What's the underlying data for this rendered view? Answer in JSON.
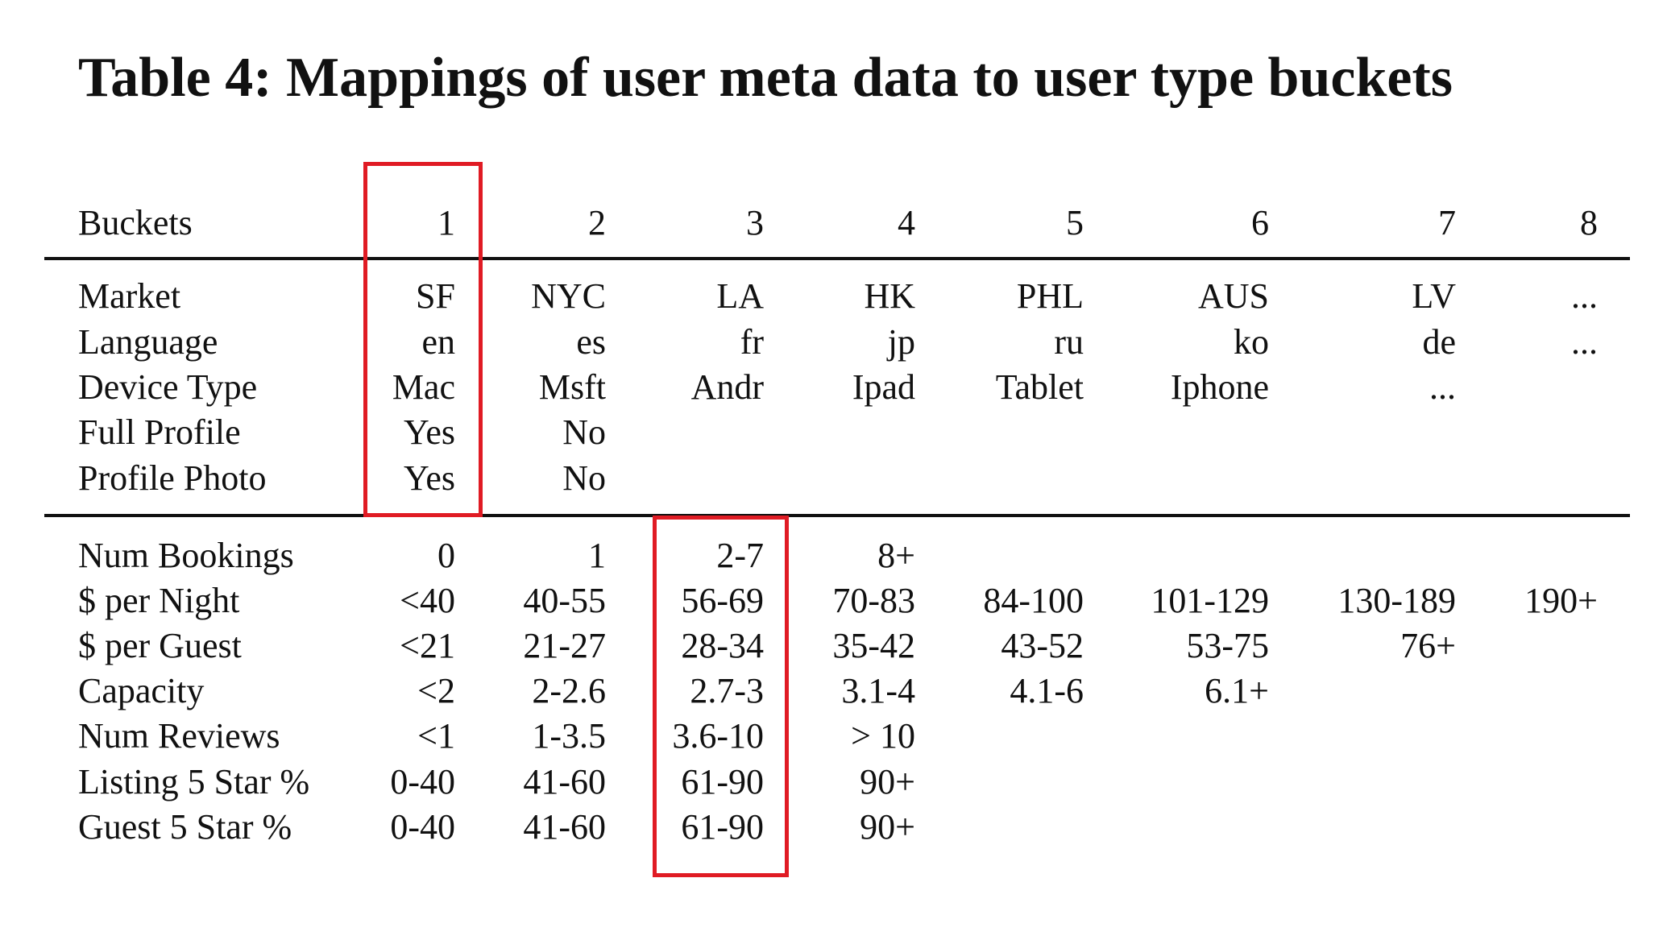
{
  "title": "Table 4: Mappings of user meta data to user type buckets",
  "header": {
    "label": "Buckets",
    "columns": [
      "1",
      "2",
      "3",
      "4",
      "5",
      "6",
      "7",
      "8"
    ]
  },
  "group1": [
    {
      "label": "Market",
      "cells": [
        "SF",
        "NYC",
        "LA",
        "HK",
        "PHL",
        "AUS",
        "LV",
        "..."
      ]
    },
    {
      "label": "Language",
      "cells": [
        "en",
        "es",
        "fr",
        "jp",
        "ru",
        "ko",
        "de",
        "..."
      ]
    },
    {
      "label": "Device Type",
      "cells": [
        "Mac",
        "Msft",
        "Andr",
        "Ipad",
        "Tablet",
        "Iphone",
        "...",
        ""
      ]
    },
    {
      "label": "Full Profile",
      "cells": [
        "Yes",
        "No",
        "",
        "",
        "",
        "",
        "",
        ""
      ]
    },
    {
      "label": "Profile Photo",
      "cells": [
        "Yes",
        "No",
        "",
        "",
        "",
        "",
        "",
        ""
      ]
    }
  ],
  "group2": [
    {
      "label": "Num Bookings",
      "cells": [
        "0",
        "1",
        "2-7",
        "8+",
        "",
        "",
        "",
        ""
      ]
    },
    {
      "label": "$ per Night",
      "cells": [
        "<40",
        "40-55",
        "56-69",
        "70-83",
        "84-100",
        "101-129",
        "130-189",
        "190+"
      ]
    },
    {
      "label": "$ per Guest",
      "cells": [
        "<21",
        "21-27",
        "28-34",
        "35-42",
        "43-52",
        "53-75",
        "76+",
        ""
      ]
    },
    {
      "label": "Capacity",
      "cells": [
        "<2",
        "2-2.6",
        "2.7-3",
        "3.1-4",
        "4.1-6",
        "6.1+",
        "",
        ""
      ]
    },
    {
      "label": "Num Reviews",
      "cells": [
        "<1",
        "1-3.5",
        "3.6-10",
        "> 10",
        "",
        "",
        "",
        ""
      ]
    },
    {
      "label": "Listing 5 Star %",
      "cells": [
        "0-40",
        "41-60",
        "61-90",
        "90+",
        "",
        "",
        "",
        ""
      ]
    },
    {
      "label": "Guest 5 Star %",
      "cells": [
        "0-40",
        "41-60",
        "61-90",
        "90+",
        "",
        "",
        "",
        ""
      ]
    }
  ],
  "highlight_color": "#e01b24",
  "highlights": [
    "column-1-top-block",
    "column-3-bottom-block"
  ]
}
